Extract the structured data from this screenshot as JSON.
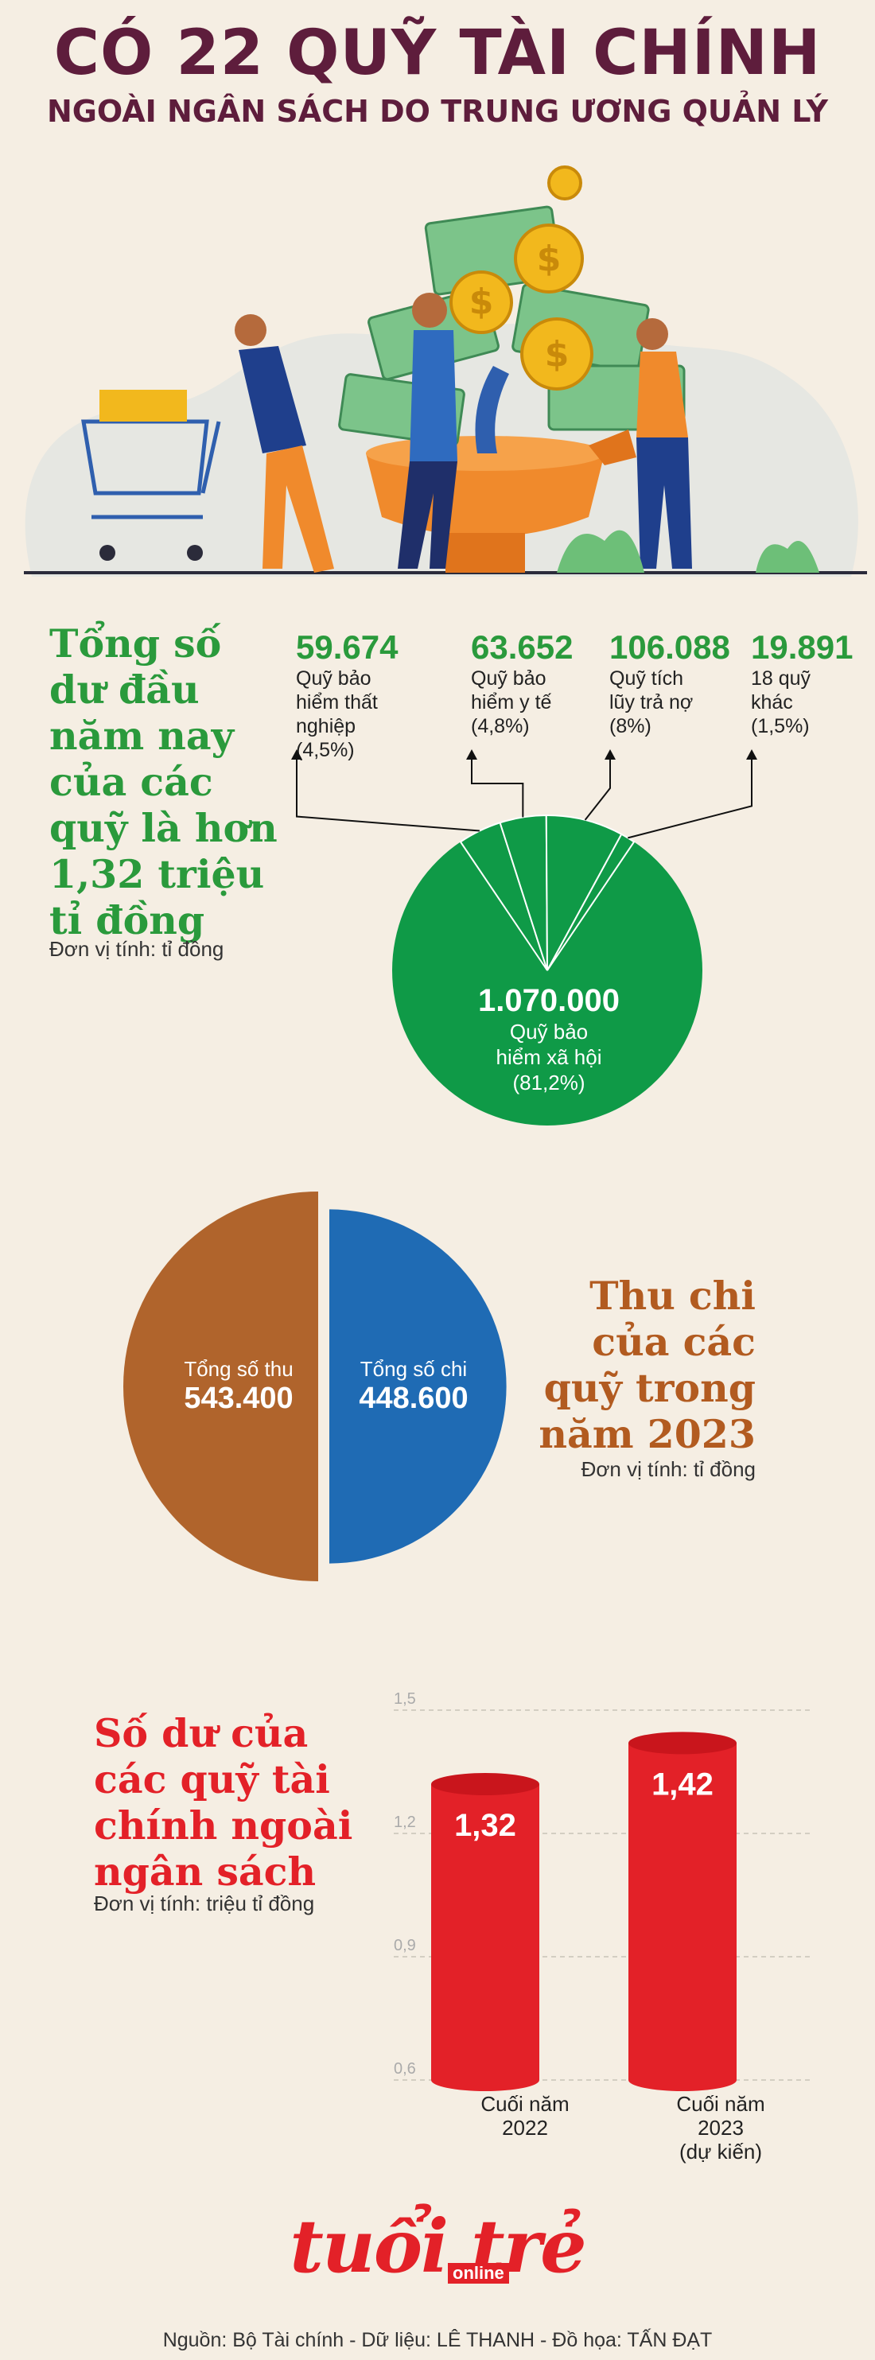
{
  "header": {
    "title": "CÓ 22 QUỸ TÀI CHÍNH",
    "subtitle": "NGOÀI NGÂN SÁCH DO TRUNG ƯƠNG QUẢN LÝ"
  },
  "colors": {
    "green": "#2a9a3c",
    "pie_green": "#0f9a47",
    "brown": "#b0642c",
    "blue": "#1f6bb4",
    "red": "#e32128",
    "title": "#5e1d3c"
  },
  "section1": {
    "heading_lines": [
      "Tổng số",
      "dư đầu",
      "năm nay",
      "của các",
      "quỹ là hơn",
      "1,32 triệu",
      "tỉ đồng"
    ],
    "unit": "Đơn vị tính: tỉ đồng"
  },
  "section2": {
    "heading_lines": [
      "Thu chi",
      "của các",
      "quỹ trong",
      "năm 2023"
    ],
    "unit": "Đơn vị tính: tỉ đồng"
  },
  "section3": {
    "heading_lines": [
      "Số dư của",
      "các quỹ tài",
      "chính ngoài",
      "ngân sách"
    ],
    "unit": "Đơn vị tính: triệu tỉ đồng"
  },
  "branding": {
    "logo": "tuổi trẻ",
    "logo_sub": "online"
  },
  "source": "Nguồn: Bộ Tài chính - Dữ liệu: LÊ THANH - Đồ họa: TẤN ĐẠT",
  "chart_data": [
    {
      "type": "pie",
      "slices": [
        {
          "value_label": "1.070.000",
          "value": 1070000,
          "label_lines": [
            "Quỹ bảo",
            "hiểm xã hội",
            "(81,2%)"
          ],
          "percent": 81.2
        },
        {
          "value_label": "59.674",
          "value": 59674,
          "label_lines": [
            "Quỹ bảo",
            "hiểm thất",
            "nghiệp (4,5%)"
          ],
          "percent": 4.5
        },
        {
          "value_label": "63.652",
          "value": 63652,
          "label_lines": [
            "Quỹ bảo",
            "hiểm y tế",
            "(4,8%)"
          ],
          "percent": 4.8
        },
        {
          "value_label": "106.088",
          "value": 106088,
          "label_lines": [
            "Quỹ tích",
            "lũy trả nợ",
            "(8%)"
          ],
          "percent": 8
        },
        {
          "value_label": "19.891",
          "value": 19891,
          "label_lines": [
            "18 quỹ",
            "khác",
            "(1,5%)"
          ],
          "percent": 1.5
        }
      ]
    },
    {
      "type": "pie",
      "slices": [
        {
          "name": "Tổng số thu",
          "value_label": "543.400",
          "value": 543400
        },
        {
          "name": "Tổng số chi",
          "value_label": "448.600",
          "value": 448600
        }
      ]
    },
    {
      "type": "bar",
      "categories": [
        [
          "Cuối năm",
          "2022"
        ],
        [
          "Cuối năm",
          "2023",
          "(dự kiến)"
        ]
      ],
      "values": [
        1.32,
        1.42
      ],
      "value_labels": [
        "1,32",
        "1,42"
      ],
      "ylim": [
        0.6,
        1.5
      ],
      "yticks": [
        0.6,
        0.9,
        1.2,
        1.5
      ],
      "ytick_labels": [
        "0,6",
        "0,9",
        "1,2",
        "1,5"
      ],
      "grid": true
    }
  ]
}
